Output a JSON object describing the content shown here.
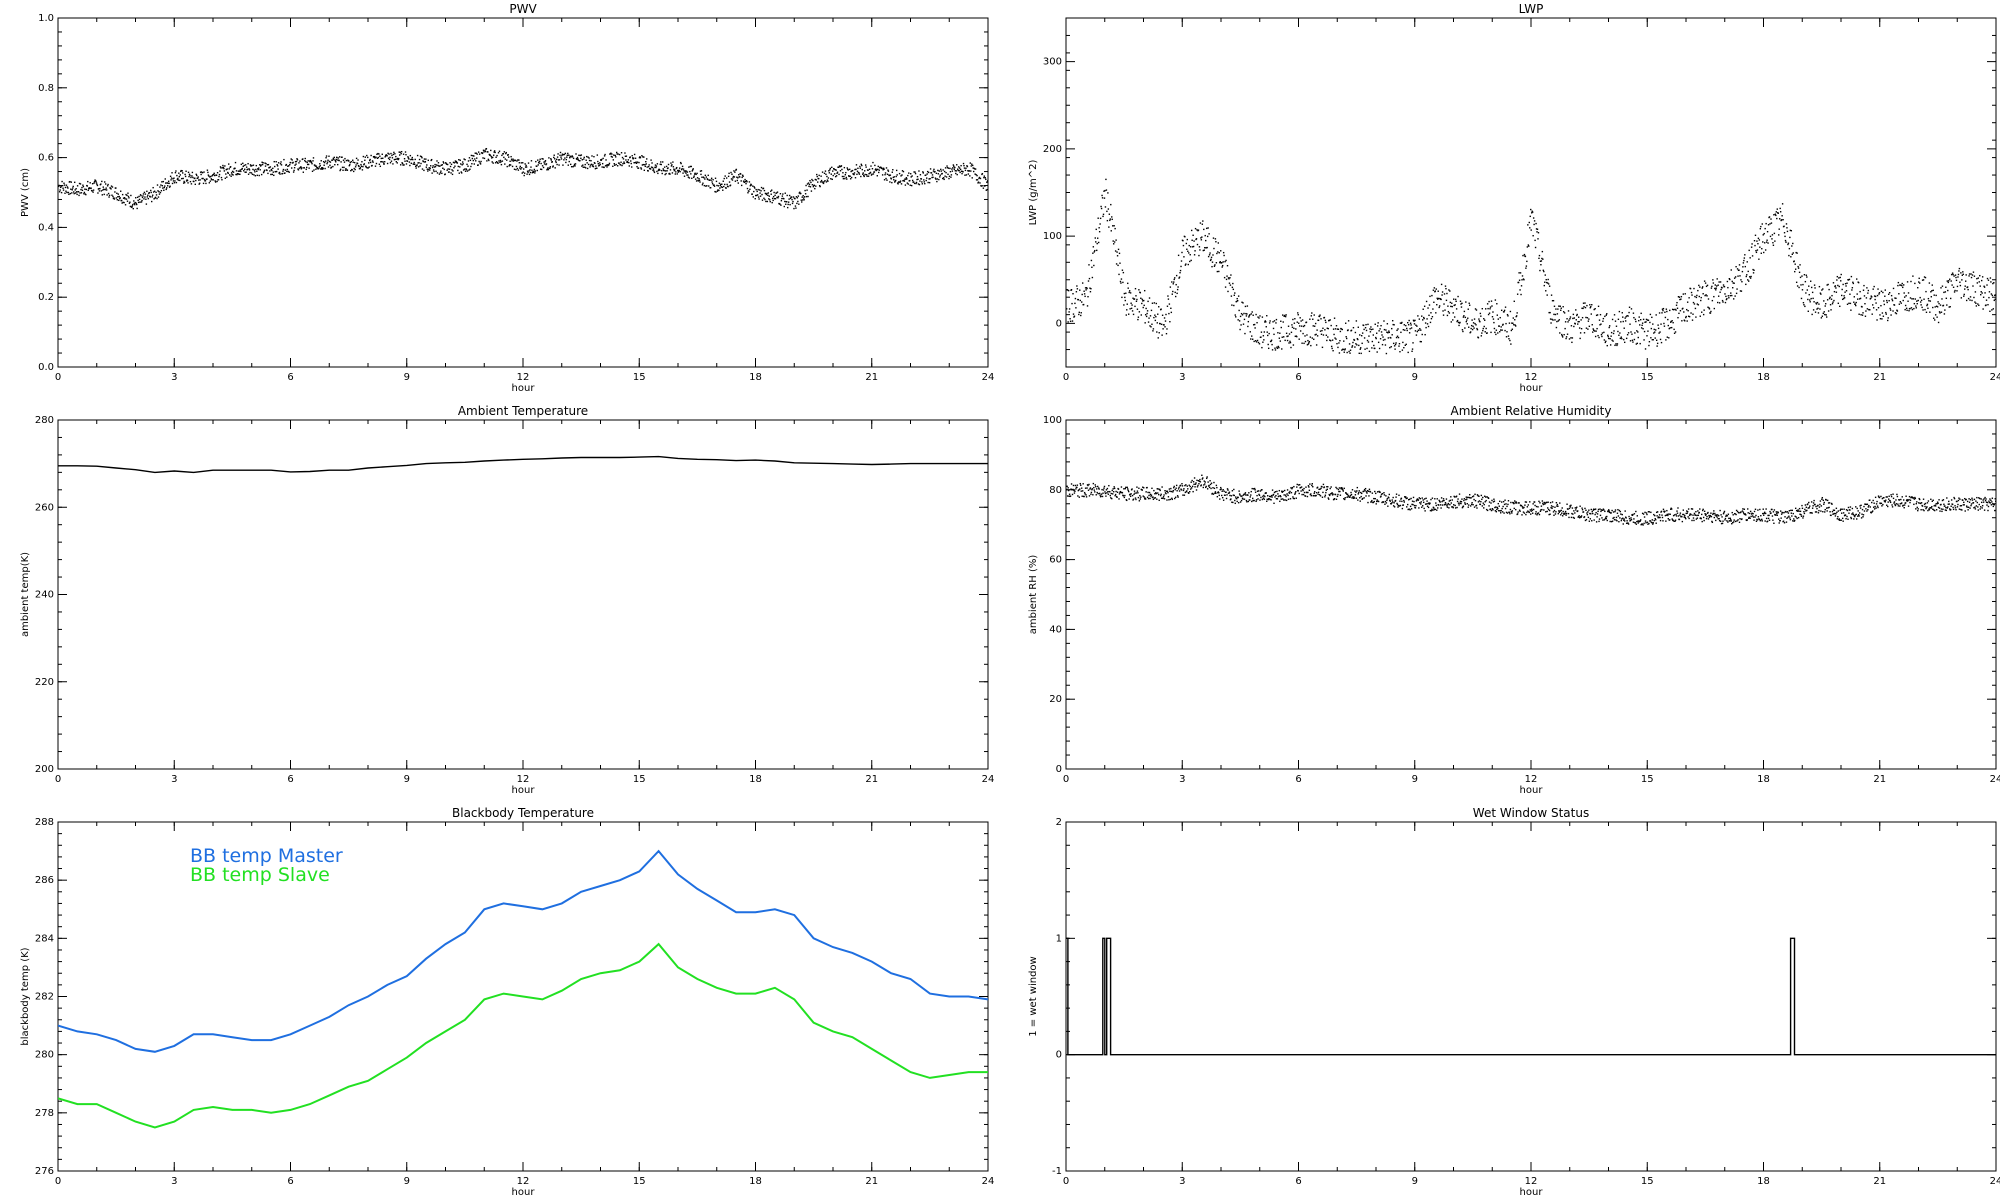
{
  "chart_data": [
    {
      "type": "scatter",
      "title": "PWV",
      "xlabel": "hour",
      "ylabel": "PWV (cm)",
      "xlim": [
        0,
        24
      ],
      "ylim": [
        0.0,
        1.0
      ],
      "xticks": [
        "0",
        "3",
        "6",
        "9",
        "12",
        "15",
        "18",
        "21",
        "24"
      ],
      "yticks": [
        "0.0",
        "0.2",
        "0.4",
        "0.6",
        "0.8",
        "1.0"
      ],
      "series": [
        {
          "color": "#000000",
          "x": [
            0,
            0.5,
            1,
            1.5,
            2,
            2.5,
            3,
            3.5,
            4,
            4.5,
            5,
            5.5,
            6,
            6.5,
            7,
            7.5,
            8,
            8.5,
            9,
            9.5,
            10,
            10.5,
            11,
            11.5,
            12,
            12.5,
            13,
            13.5,
            14,
            14.5,
            15,
            15.5,
            16,
            16.5,
            17,
            17.5,
            18,
            18.5,
            19,
            19.5,
            20,
            20.5,
            21,
            21.5,
            22,
            22.5,
            23,
            23.5,
            24
          ],
          "y": [
            0.52,
            0.51,
            0.52,
            0.5,
            0.47,
            0.5,
            0.55,
            0.54,
            0.55,
            0.57,
            0.57,
            0.57,
            0.58,
            0.58,
            0.59,
            0.58,
            0.59,
            0.6,
            0.6,
            0.58,
            0.57,
            0.58,
            0.61,
            0.6,
            0.57,
            0.58,
            0.6,
            0.59,
            0.59,
            0.6,
            0.59,
            0.57,
            0.57,
            0.55,
            0.52,
            0.55,
            0.5,
            0.49,
            0.47,
            0.53,
            0.56,
            0.56,
            0.57,
            0.55,
            0.54,
            0.55,
            0.56,
            0.57,
            0.52
          ]
        }
      ]
    },
    {
      "type": "scatter",
      "title": "LWP",
      "xlabel": "hour",
      "ylabel": "LWP (g/m^2)",
      "xlim": [
        0,
        24
      ],
      "ylim": [
        -50,
        350
      ],
      "xticks": [
        "0",
        "3",
        "6",
        "9",
        "12",
        "15",
        "18",
        "21",
        "24"
      ],
      "yticks": [
        "0",
        "100",
        "200",
        "300"
      ],
      "series": [
        {
          "color": "#000000",
          "x": [
            0,
            0.5,
            1,
            1.5,
            2,
            2.5,
            3,
            3.5,
            4,
            4.5,
            5,
            5.5,
            6,
            6.5,
            7,
            7.5,
            8,
            8.5,
            9,
            9.5,
            10,
            10.5,
            11,
            11.5,
            12,
            12.5,
            13,
            13.5,
            14,
            14.5,
            15,
            15.5,
            16,
            16.5,
            17,
            17.5,
            18,
            18.5,
            19,
            19.5,
            20,
            20.5,
            21,
            21.5,
            22,
            22.5,
            23,
            23.5,
            24
          ],
          "y": [
            20,
            30,
            150,
            30,
            20,
            -5,
            80,
            100,
            70,
            10,
            -10,
            -10,
            -5,
            -5,
            -15,
            -15,
            -15,
            -15,
            -15,
            30,
            20,
            0,
            10,
            -5,
            120,
            20,
            -5,
            10,
            -10,
            0,
            -10,
            0,
            20,
            30,
            40,
            60,
            100,
            120,
            40,
            20,
            40,
            30,
            20,
            30,
            40,
            20,
            50,
            40,
            30
          ]
        }
      ]
    },
    {
      "type": "line",
      "title": "Ambient Temperature",
      "xlabel": "hour",
      "ylabel": "ambient temp(K)",
      "xlim": [
        0,
        24
      ],
      "ylim": [
        200,
        280
      ],
      "xticks": [
        "0",
        "3",
        "6",
        "9",
        "12",
        "15",
        "18",
        "21",
        "24"
      ],
      "yticks": [
        "200",
        "220",
        "240",
        "260",
        "280"
      ],
      "series": [
        {
          "color": "#000000",
          "x": [
            0,
            0.5,
            1,
            1.5,
            2,
            2.5,
            3,
            3.5,
            4,
            4.5,
            5,
            5.5,
            6,
            6.5,
            7,
            7.5,
            8,
            8.5,
            9,
            9.5,
            10,
            10.5,
            11,
            11.5,
            12,
            12.5,
            13,
            13.5,
            14,
            14.5,
            15,
            15.5,
            16,
            16.5,
            17,
            17.5,
            18,
            18.5,
            19,
            19.5,
            20,
            20.5,
            21,
            21.5,
            22,
            22.5,
            23,
            23.5,
            24
          ],
          "y": [
            269.5,
            269.5,
            269.4,
            269.0,
            268.6,
            268.0,
            268.3,
            268.0,
            268.5,
            268.5,
            268.5,
            268.5,
            268.1,
            268.2,
            268.5,
            268.5,
            269.0,
            269.3,
            269.6,
            270.0,
            270.2,
            270.3,
            270.6,
            270.8,
            271.0,
            271.1,
            271.3,
            271.4,
            271.4,
            271.4,
            271.5,
            271.6,
            271.2,
            271.0,
            270.9,
            270.7,
            270.8,
            270.6,
            270.2,
            270.1,
            270.0,
            269.9,
            269.8,
            269.9,
            270.0,
            270.0,
            270.0,
            270.0,
            270.0
          ]
        }
      ]
    },
    {
      "type": "scatter",
      "title": "Ambient Relative Humidity",
      "xlabel": "hour",
      "ylabel": "ambient RH (%)",
      "xlim": [
        0,
        24
      ],
      "ylim": [
        0,
        100
      ],
      "xticks": [
        "0",
        "3",
        "6",
        "9",
        "12",
        "15",
        "18",
        "21",
        "24"
      ],
      "yticks": [
        "0",
        "20",
        "40",
        "60",
        "80",
        "100"
      ],
      "series": [
        {
          "color": "#000000",
          "x": [
            0,
            0.5,
            1,
            1.5,
            2,
            2.5,
            3,
            3.5,
            4,
            4.5,
            5,
            5.5,
            6,
            6.5,
            7,
            7.5,
            8,
            8.5,
            9,
            9.5,
            10,
            10.5,
            11,
            11.5,
            12,
            12.5,
            13,
            13.5,
            14,
            14.5,
            15,
            15.5,
            16,
            16.5,
            17,
            17.5,
            18,
            18.5,
            19,
            19.5,
            20,
            20.5,
            21,
            21.5,
            22,
            22.5,
            23,
            23.5,
            24
          ],
          "y": [
            80,
            80,
            80,
            79,
            79,
            79,
            80,
            83,
            79,
            78,
            79,
            78,
            80,
            80,
            79,
            79,
            78,
            77,
            76,
            76,
            77,
            77,
            76,
            75,
            75,
            75,
            74,
            73,
            73,
            72,
            72,
            73,
            73,
            73,
            72,
            73,
            73,
            72,
            74,
            76,
            73,
            74,
            77,
            77,
            76,
            76,
            76,
            76,
            76
          ]
        }
      ]
    },
    {
      "type": "line",
      "title": "Blackbody Temperature",
      "xlabel": "hour",
      "ylabel": "blackbody temp (K)",
      "xlim": [
        0,
        24
      ],
      "ylim": [
        276,
        288
      ],
      "xticks": [
        "0",
        "3",
        "6",
        "9",
        "12",
        "15",
        "18",
        "21",
        "24"
      ],
      "yticks": [
        "276",
        "278",
        "280",
        "282",
        "284",
        "286",
        "288"
      ],
      "legend": "top-left",
      "series": [
        {
          "name": "BB temp Master",
          "color": "#1f6fe0",
          "x": [
            0,
            0.5,
            1,
            1.5,
            2,
            2.5,
            3,
            3.5,
            4,
            4.5,
            5,
            5.5,
            6,
            6.5,
            7,
            7.5,
            8,
            8.5,
            9,
            9.5,
            10,
            10.5,
            11,
            11.5,
            12,
            12.5,
            13,
            13.5,
            14,
            14.5,
            15,
            15.5,
            16,
            16.5,
            17,
            17.5,
            18,
            18.5,
            19,
            19.5,
            20,
            20.5,
            21,
            21.5,
            22,
            22.5,
            23,
            23.5,
            24
          ],
          "y": [
            281.0,
            280.8,
            280.7,
            280.5,
            280.2,
            280.1,
            280.3,
            280.7,
            280.7,
            280.6,
            280.5,
            280.5,
            280.7,
            281.0,
            281.3,
            281.7,
            282.0,
            282.4,
            282.7,
            283.3,
            283.8,
            284.2,
            285.0,
            285.2,
            285.1,
            285.0,
            285.2,
            285.6,
            285.8,
            286.0,
            286.3,
            287.0,
            286.2,
            285.7,
            285.3,
            284.9,
            284.9,
            285.0,
            284.8,
            284.0,
            283.7,
            283.5,
            283.2,
            282.8,
            282.6,
            282.1,
            282.0,
            282.0,
            281.9
          ]
        },
        {
          "name": "BB temp Slave",
          "color": "#22e022",
          "x": [
            0,
            0.5,
            1,
            1.5,
            2,
            2.5,
            3,
            3.5,
            4,
            4.5,
            5,
            5.5,
            6,
            6.5,
            7,
            7.5,
            8,
            8.5,
            9,
            9.5,
            10,
            10.5,
            11,
            11.5,
            12,
            12.5,
            13,
            13.5,
            14,
            14.5,
            15,
            15.5,
            16,
            16.5,
            17,
            17.5,
            18,
            18.5,
            19,
            19.5,
            20,
            20.5,
            21,
            21.5,
            22,
            22.5,
            23,
            23.5,
            24
          ],
          "y": [
            278.5,
            278.3,
            278.3,
            278.0,
            277.7,
            277.5,
            277.7,
            278.1,
            278.2,
            278.1,
            278.1,
            278.0,
            278.1,
            278.3,
            278.6,
            278.9,
            279.1,
            279.5,
            279.9,
            280.4,
            280.8,
            281.2,
            281.9,
            282.1,
            282.0,
            281.9,
            282.2,
            282.6,
            282.8,
            282.9,
            283.2,
            283.8,
            283.0,
            282.6,
            282.3,
            282.1,
            282.1,
            282.3,
            281.9,
            281.1,
            280.8,
            280.6,
            280.2,
            279.8,
            279.4,
            279.2,
            279.3,
            279.4,
            279.4
          ]
        }
      ]
    },
    {
      "type": "line",
      "title": "Wet Window Status",
      "xlabel": "hour",
      "ylabel": "1 = wet window",
      "xlim": [
        0,
        24
      ],
      "ylim": [
        -1,
        2
      ],
      "xticks": [
        "0",
        "3",
        "6",
        "9",
        "12",
        "15",
        "18",
        "21",
        "24"
      ],
      "yticks": [
        "-1",
        "0",
        "1",
        "2"
      ],
      "series": [
        {
          "color": "#000000",
          "x": [
            0,
            0.05,
            0.05,
            0.1,
            0.1,
            0.95,
            0.95,
            1.0,
            1.0,
            1.05,
            1.05,
            1.1,
            1.1,
            1.15,
            1.15,
            18.7,
            18.7,
            18.75,
            18.75,
            18.8,
            18.8,
            24
          ],
          "y": [
            1,
            1,
            0,
            0,
            0,
            0,
            1,
            1,
            0,
            0,
            1,
            1,
            1,
            1,
            0,
            0,
            1,
            1,
            1,
            1,
            0,
            0
          ]
        }
      ]
    }
  ]
}
